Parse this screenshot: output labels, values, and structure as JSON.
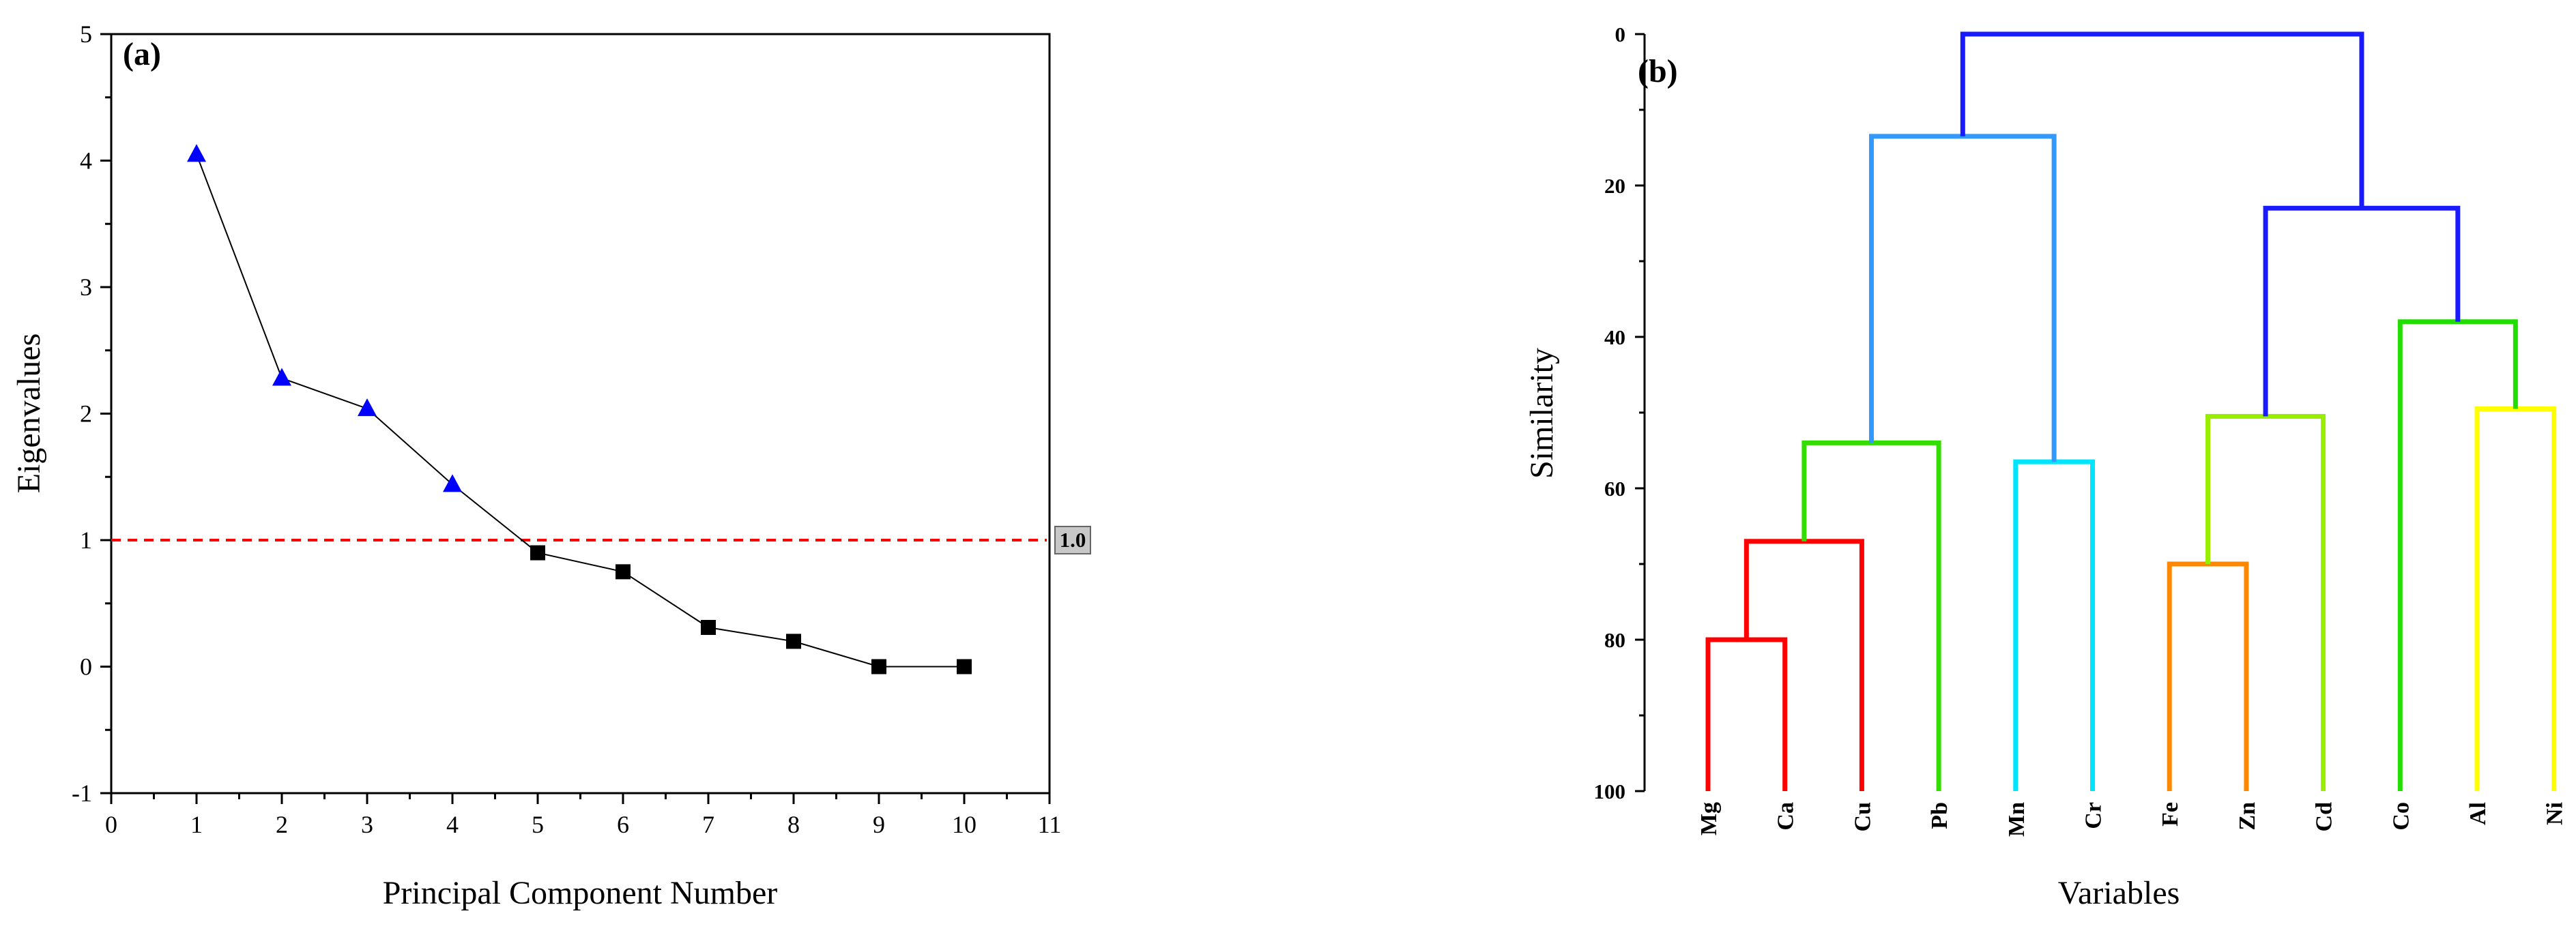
{
  "chart_data": [
    {
      "type": "line",
      "panel": "(a)",
      "xlabel": "Principal Component Number",
      "ylabel": "Eigenvalues",
      "xlim": [
        0,
        11
      ],
      "ylim": [
        -1,
        5
      ],
      "xticks": [
        0,
        1,
        2,
        3,
        4,
        5,
        6,
        7,
        8,
        9,
        10,
        11
      ],
      "yticks": [
        -1,
        0,
        1,
        2,
        3,
        4,
        5
      ],
      "series": [
        {
          "name": "Eigenvalues",
          "x": [
            1,
            2,
            3,
            4,
            5,
            6,
            7,
            8,
            9,
            10
          ],
          "values": [
            4.05,
            2.28,
            2.04,
            1.44,
            0.9,
            0.75,
            0.31,
            0.2,
            0.0,
            0.0
          ],
          "marker_colors": {
            "triangle": "#0000ff",
            "square": "#000000"
          },
          "triangle_points": [
            1,
            2,
            3,
            4
          ],
          "square_points": [
            5,
            6,
            7,
            8,
            9,
            10
          ]
        }
      ],
      "reference_line": {
        "value": 1.0,
        "label": "1.0",
        "color": "#ff0000",
        "style": "dashed"
      }
    },
    {
      "type": "dendrogram",
      "panel": "(b)",
      "xlabel": "Variables",
      "ylabel": "Similarity",
      "ylim": [
        0,
        100
      ],
      "yticks": [
        0,
        20,
        40,
        60,
        80,
        100
      ],
      "leaves": [
        "Mg",
        "Ca",
        "Cu",
        "Pb",
        "Mn",
        "Cr",
        "Fe",
        "Zn",
        "Cd",
        "Co",
        "Al",
        "Ni"
      ],
      "merges": [
        {
          "left": "Mg",
          "right": "Ca",
          "similarity": 80,
          "color": "#ff0000"
        },
        {
          "left": "Mg-Ca",
          "right": "Cu",
          "similarity": 67,
          "color": "#ff0000"
        },
        {
          "left": "Mg-Ca-Cu",
          "right": "Pb",
          "similarity": 54,
          "color": "#33dd00"
        },
        {
          "left": "Mn",
          "right": "Cr",
          "similarity": 56.5,
          "color": "#00e5ff"
        },
        {
          "left": "Mg-Ca-Cu-Pb",
          "right": "Mn-Cr",
          "similarity": 13.5,
          "color": "#3399ff"
        },
        {
          "left": "Fe",
          "right": "Zn",
          "similarity": 70,
          "color": "#ff8800"
        },
        {
          "left": "Fe-Zn",
          "right": "Cd",
          "similarity": 50.5,
          "color": "#99ee00"
        },
        {
          "left": "Al",
          "right": "Ni",
          "similarity": 49.5,
          "color": "#ffff00"
        },
        {
          "left": "Co",
          "right": "Al-Ni",
          "similarity": 38,
          "color": "#22dd00"
        },
        {
          "left": "Fe-Zn-Cd",
          "right": "Co-Al-Ni",
          "similarity": 23,
          "color": "#1a1aff"
        },
        {
          "left": "Mg-Ca-Cu-Pb-Mn-Cr",
          "right": "Fe-Zn-Cd-Co-Al-Ni",
          "similarity": 0,
          "color": "#1a1aff"
        }
      ]
    }
  ]
}
